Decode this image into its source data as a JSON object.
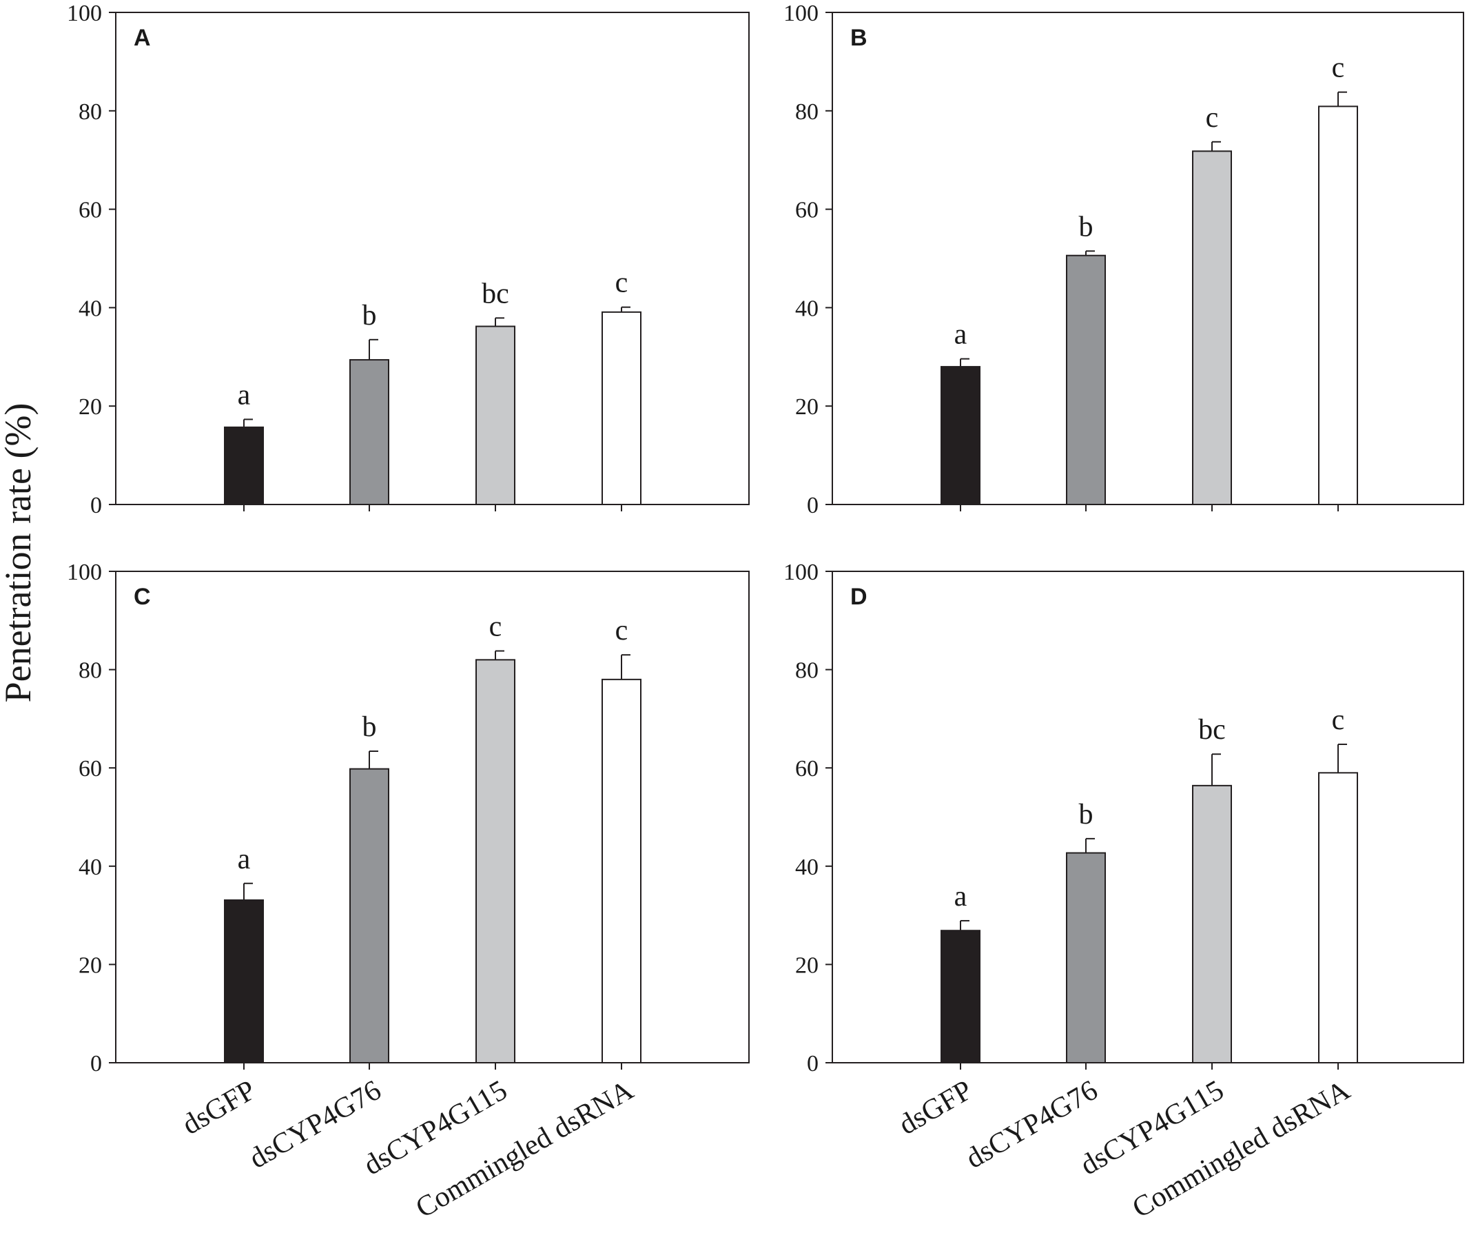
{
  "figure": {
    "y_axis_title": "Penetration rate (%)",
    "categories": [
      "dsGFP",
      "dsCYP4G76",
      "dsCYP4G115",
      "Commingled dsRNA"
    ]
  },
  "colors": {
    "dsGFP": "#231f20",
    "dsCYP4G76": "#939598",
    "dsCYP4G115": "#c8c9cb",
    "Commingled dsRNA": "#ffffff",
    "stroke": "#231f20"
  },
  "chart_data": [
    {
      "type": "bar",
      "panel": "A",
      "categories": [
        "dsGFP",
        "dsCYP4G76",
        "dsCYP4G115",
        "Commingled dsRNA"
      ],
      "values": [
        15.7,
        29.4,
        36.2,
        39.1
      ],
      "errors": [
        1.6,
        4.1,
        1.7,
        1.0
      ],
      "significance": [
        "a",
        "b",
        "bc",
        "c"
      ],
      "ylabel": "Penetration rate (%)",
      "ylim": [
        0,
        100
      ],
      "yticks": [
        0,
        20,
        40,
        60,
        80,
        100
      ],
      "yticklabels": [
        "0",
        "20",
        "40",
        "60",
        "80",
        "100"
      ]
    },
    {
      "type": "bar",
      "panel": "B",
      "categories": [
        "dsGFP",
        "dsCYP4G76",
        "dsCYP4G115",
        "Commingled dsRNA"
      ],
      "values": [
        28.0,
        50.6,
        71.8,
        80.9
      ],
      "errors": [
        1.6,
        0.9,
        1.9,
        2.9
      ],
      "significance": [
        "a",
        "b",
        "c",
        "c"
      ],
      "ylabel": "Penetration rate (%)",
      "ylim": [
        0,
        100
      ],
      "yticks": [
        0,
        20,
        40,
        60,
        80,
        100
      ],
      "yticklabels": [
        "0",
        "20",
        "40",
        "60",
        "80",
        "100"
      ]
    },
    {
      "type": "bar",
      "panel": "C",
      "categories": [
        "dsGFP",
        "dsCYP4G76",
        "dsCYP4G115",
        "Commingled dsRNA"
      ],
      "values": [
        33.1,
        59.8,
        82.0,
        78.0
      ],
      "errors": [
        3.4,
        3.6,
        1.8,
        5.0
      ],
      "significance": [
        "a",
        "b",
        "c",
        "c"
      ],
      "ylabel": "Penetration rate (%)",
      "ylim": [
        0,
        100
      ],
      "yticks": [
        0,
        20,
        40,
        60,
        80,
        100
      ],
      "yticklabels": [
        "0",
        "20",
        "40",
        "60",
        "80",
        "100"
      ]
    },
    {
      "type": "bar",
      "panel": "D",
      "categories": [
        "dsGFP",
        "dsCYP4G76",
        "dsCYP4G115",
        "Commingled dsRNA"
      ],
      "values": [
        26.9,
        42.7,
        56.4,
        59.0
      ],
      "errors": [
        2.0,
        2.9,
        6.4,
        5.8
      ],
      "significance": [
        "a",
        "b",
        "bc",
        "c"
      ],
      "ylabel": "Penetration rate (%)",
      "ylim": [
        0,
        100
      ],
      "yticks": [
        0,
        20,
        40,
        60,
        80,
        100
      ],
      "yticklabels": [
        "0",
        "20",
        "40",
        "60",
        "80",
        "100"
      ]
    }
  ]
}
